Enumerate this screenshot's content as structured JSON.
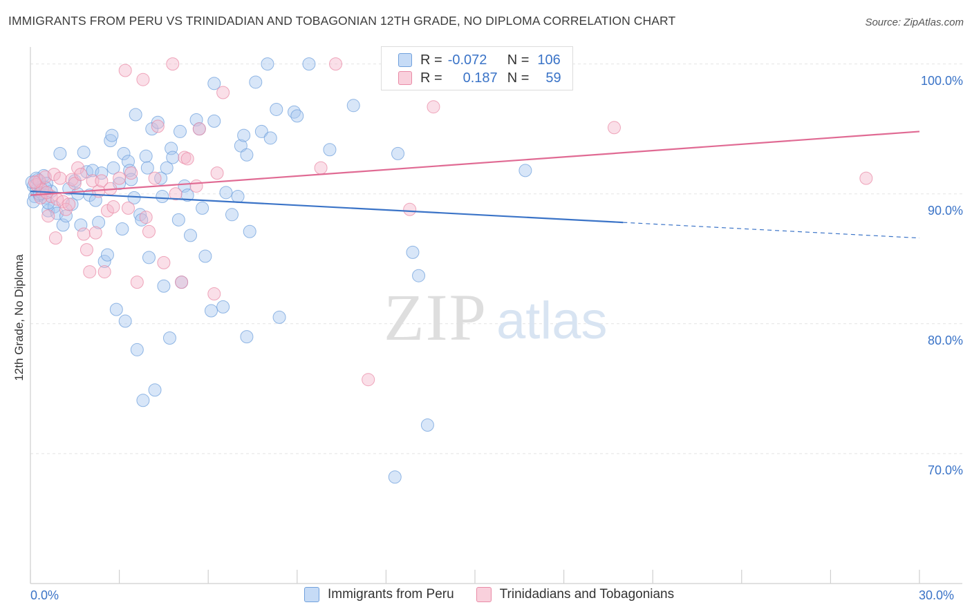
{
  "title": "IMMIGRANTS FROM PERU VS TRINIDADIAN AND TOBAGONIAN 12TH GRADE, NO DIPLOMA CORRELATION CHART",
  "source": "Source: ZipAtlas.com",
  "watermark": {
    "zip": "ZIP",
    "atlas": "atlas"
  },
  "legend_stats": [
    {
      "r_label": "R =",
      "r_value": "-0.072",
      "n_label": "N =",
      "n_value": "106",
      "color": "#a8c8f0"
    },
    {
      "r_label": "R =",
      "r_value": "0.187",
      "n_label": "N =",
      "n_value": "59",
      "color": "#f5b8cb"
    }
  ],
  "chart_data": {
    "type": "scatter",
    "ylabel": "12th Grade, No Diploma",
    "xlabel": "",
    "xlim": [
      0,
      30
    ],
    "ylim": [
      60,
      102
    ],
    "x_tick_labels": [
      "0.0%",
      "30.0%"
    ],
    "y_ticks": [
      70,
      80,
      90,
      100
    ],
    "y_tick_labels": [
      "70.0%",
      "80.0%",
      "90.0%",
      "100.0%"
    ],
    "grid": true,
    "legend_position": "bottom",
    "series": [
      {
        "name": "Immigrants from Peru",
        "color": "#6fa0dc",
        "fill": "#a8c8f0",
        "trend": {
          "x0": 0,
          "y0": 90.2,
          "x1": 20,
          "y1": 87.8,
          "dash_to_x": 30,
          "dash_to_y": 86.6
        },
        "points": [
          [
            0.1,
            90.6
          ],
          [
            0.15,
            89.8
          ],
          [
            0.2,
            90.3
          ],
          [
            0.25,
            91.1
          ],
          [
            0.3,
            89.9
          ],
          [
            0.35,
            90.5
          ],
          [
            0.4,
            90.0
          ],
          [
            0.45,
            91.4
          ],
          [
            0.5,
            89.7
          ],
          [
            0.55,
            90.8
          ],
          [
            0.6,
            88.7
          ],
          [
            0.7,
            90.2
          ],
          [
            0.8,
            89.0
          ],
          [
            0.9,
            88.5
          ],
          [
            1.0,
            93.1
          ],
          [
            1.1,
            87.6
          ],
          [
            1.2,
            88.3
          ],
          [
            1.3,
            90.4
          ],
          [
            1.4,
            89.2
          ],
          [
            1.5,
            91.0
          ],
          [
            1.6,
            90.0
          ],
          [
            1.7,
            87.6
          ],
          [
            1.8,
            93.2
          ],
          [
            1.9,
            91.7
          ],
          [
            2.0,
            89.9
          ],
          [
            2.1,
            91.8
          ],
          [
            2.2,
            89.5
          ],
          [
            2.3,
            87.8
          ],
          [
            2.4,
            91.6
          ],
          [
            2.5,
            84.8
          ],
          [
            2.6,
            85.3
          ],
          [
            2.7,
            94.1
          ],
          [
            2.75,
            94.5
          ],
          [
            2.8,
            92.0
          ],
          [
            2.9,
            81.1
          ],
          [
            3.0,
            90.8
          ],
          [
            3.1,
            87.3
          ],
          [
            3.15,
            93.1
          ],
          [
            3.2,
            80.2
          ],
          [
            3.3,
            92.5
          ],
          [
            3.35,
            91.8
          ],
          [
            3.4,
            91.1
          ],
          [
            3.5,
            89.7
          ],
          [
            3.55,
            96.1
          ],
          [
            3.6,
            78.0
          ],
          [
            3.7,
            88.4
          ],
          [
            3.75,
            88.0
          ],
          [
            3.8,
            74.1
          ],
          [
            3.9,
            92.9
          ],
          [
            3.95,
            92.0
          ],
          [
            4.0,
            85.1
          ],
          [
            4.1,
            95.0
          ],
          [
            4.2,
            74.9
          ],
          [
            4.3,
            95.5
          ],
          [
            4.4,
            91.2
          ],
          [
            4.45,
            89.8
          ],
          [
            4.5,
            82.9
          ],
          [
            4.6,
            92.0
          ],
          [
            4.7,
            78.9
          ],
          [
            4.75,
            93.5
          ],
          [
            4.8,
            92.8
          ],
          [
            5.0,
            88.0
          ],
          [
            5.05,
            94.8
          ],
          [
            5.1,
            83.2
          ],
          [
            5.2,
            90.6
          ],
          [
            5.3,
            89.9
          ],
          [
            5.4,
            86.8
          ],
          [
            5.6,
            95.7
          ],
          [
            5.7,
            95.0
          ],
          [
            5.8,
            88.9
          ],
          [
            5.9,
            85.2
          ],
          [
            6.1,
            81.0
          ],
          [
            6.2,
            95.6
          ],
          [
            6.2,
            98.5
          ],
          [
            6.5,
            81.3
          ],
          [
            6.6,
            90.1
          ],
          [
            6.8,
            88.4
          ],
          [
            7.0,
            89.8
          ],
          [
            7.1,
            93.7
          ],
          [
            7.2,
            94.5
          ],
          [
            7.3,
            93.0
          ],
          [
            7.3,
            79.0
          ],
          [
            7.4,
            87.1
          ],
          [
            7.6,
            98.6
          ],
          [
            7.8,
            94.8
          ],
          [
            8.0,
            100.0
          ],
          [
            8.1,
            94.3
          ],
          [
            8.3,
            96.5
          ],
          [
            8.4,
            80.5
          ],
          [
            8.9,
            96.3
          ],
          [
            9.0,
            96.0
          ],
          [
            9.4,
            100.0
          ],
          [
            10.1,
            93.4
          ],
          [
            10.9,
            96.8
          ],
          [
            12.3,
            68.2
          ],
          [
            12.4,
            93.1
          ],
          [
            12.9,
            85.5
          ],
          [
            13.1,
            83.7
          ],
          [
            13.4,
            72.2
          ],
          [
            16.7,
            91.8
          ],
          [
            0.05,
            90.9
          ],
          [
            0.1,
            89.4
          ],
          [
            0.2,
            91.2
          ],
          [
            0.3,
            90.0
          ],
          [
            0.5,
            90.5
          ],
          [
            0.6,
            89.3
          ]
        ]
      },
      {
        "name": "Trinidadians and Tobagonians",
        "color": "#e98aa6",
        "fill": "#f5b8cb",
        "trend": {
          "x0": 0,
          "y0": 89.9,
          "x1": 30,
          "y1": 94.8
        },
        "points": [
          [
            0.2,
            90.7
          ],
          [
            0.3,
            91.0
          ],
          [
            0.4,
            90.3
          ],
          [
            0.5,
            91.3
          ],
          [
            0.6,
            88.3
          ],
          [
            0.7,
            89.8
          ],
          [
            0.8,
            91.5
          ],
          [
            0.85,
            86.6
          ],
          [
            0.9,
            89.6
          ],
          [
            1.0,
            91.2
          ],
          [
            1.1,
            89.4
          ],
          [
            1.2,
            88.8
          ],
          [
            1.3,
            89.2
          ],
          [
            1.4,
            91.1
          ],
          [
            1.5,
            90.8
          ],
          [
            1.6,
            92.0
          ],
          [
            1.7,
            91.5
          ],
          [
            1.8,
            86.9
          ],
          [
            1.9,
            85.7
          ],
          [
            2.0,
            84.0
          ],
          [
            2.1,
            91.0
          ],
          [
            2.2,
            87.0
          ],
          [
            2.3,
            90.2
          ],
          [
            2.4,
            91.0
          ],
          [
            2.5,
            84.0
          ],
          [
            2.6,
            88.7
          ],
          [
            2.7,
            90.4
          ],
          [
            2.8,
            89.0
          ],
          [
            3.0,
            91.2
          ],
          [
            3.2,
            99.5
          ],
          [
            3.3,
            88.9
          ],
          [
            3.4,
            91.6
          ],
          [
            3.6,
            83.2
          ],
          [
            3.8,
            98.8
          ],
          [
            3.9,
            88.2
          ],
          [
            4.0,
            87.1
          ],
          [
            4.2,
            91.2
          ],
          [
            4.3,
            95.2
          ],
          [
            4.5,
            84.7
          ],
          [
            4.8,
            100.0
          ],
          [
            4.9,
            90.0
          ],
          [
            5.1,
            83.2
          ],
          [
            5.2,
            92.8
          ],
          [
            5.3,
            92.7
          ],
          [
            5.6,
            90.6
          ],
          [
            5.7,
            95.0
          ],
          [
            6.2,
            82.3
          ],
          [
            6.3,
            91.6
          ],
          [
            6.5,
            97.8
          ],
          [
            9.8,
            92.0
          ],
          [
            10.3,
            100.0
          ],
          [
            11.4,
            75.7
          ],
          [
            12.8,
            88.8
          ],
          [
            13.6,
            96.7
          ],
          [
            19.7,
            95.1
          ],
          [
            28.2,
            91.2
          ],
          [
            0.15,
            90.9
          ],
          [
            0.35,
            89.7
          ],
          [
            0.55,
            90.1
          ]
        ]
      }
    ]
  }
}
